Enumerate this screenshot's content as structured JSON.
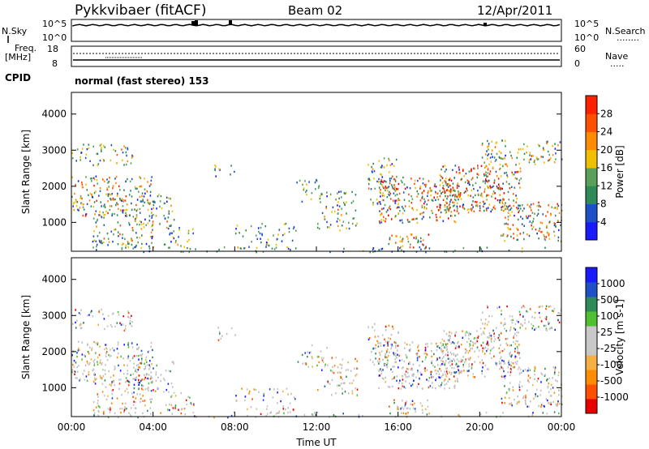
{
  "header": {
    "title": "Pykkvibaer (fitACF)",
    "beam": "Beam 02",
    "date": "12/Apr/2011"
  },
  "panels": {
    "nsky": {
      "label": "N.Sky",
      "ticks_left": [
        "10^5",
        "10^0"
      ],
      "ticks_right": [
        "10^5",
        "10^0"
      ],
      "right_label": "N.Search",
      "right_line": "........"
    },
    "freq": {
      "label_line1": "Freq.",
      "label_line2": "[MHz]",
      "ticks_left": [
        "18",
        "8"
      ],
      "ticks_right": [
        "60",
        "0"
      ],
      "right_label": "Nave",
      "right_line": "....."
    },
    "cpid": {
      "label": "CPID",
      "text": "normal (fast stereo) 153"
    }
  },
  "colors": {
    "power": [
      "#1a1aff",
      "#1e50c8",
      "#2e8b57",
      "#5aa05a",
      "#f0c000",
      "#ff8c00",
      "#ff5000",
      "#ff2000",
      "#e00000"
    ],
    "velocity": [
      "#e80000",
      "#ff5000",
      "#ff8c00",
      "#f5b041",
      "#c8c8c8",
      "#c8c8c8",
      "#50c030",
      "#2e8b57",
      "#1e50c8",
      "#1a1aff"
    ],
    "ground_scatter": "#c0c0c0"
  },
  "chart_data": [
    {
      "type": "heatmap",
      "name": "power-panel",
      "quantity": "Power",
      "ylabel": "Slant Range [km]",
      "yticks": [
        1000,
        2000,
        3000,
        4000
      ],
      "ylim": [
        200,
        4600
      ],
      "xlim_hours": [
        0,
        24
      ],
      "colorbar_label": "Power [dB]",
      "colorbar_ticks": [
        "4",
        "8",
        "12",
        "16",
        "20",
        "24",
        "28"
      ],
      "colorbar_range": [
        0,
        32
      ]
    },
    {
      "type": "heatmap",
      "name": "velocity-panel",
      "quantity": "Velocity",
      "ylabel": "Slant Range [km]",
      "yticks": [
        1000,
        2000,
        3000,
        4000
      ],
      "ylim": [
        200,
        4600
      ],
      "xlim_hours": [
        0,
        24
      ],
      "xticks": [
        "00:00",
        "04:00",
        "08:00",
        "12:00",
        "16:00",
        "20:00",
        "00:00"
      ],
      "xlabel": "Time UT",
      "colorbar_label": "Velocity [m s-1]",
      "colorbar_ticks": [
        "1000",
        "500",
        "100",
        "25",
        "-25",
        "-100",
        "-500",
        "-1000"
      ]
    }
  ]
}
